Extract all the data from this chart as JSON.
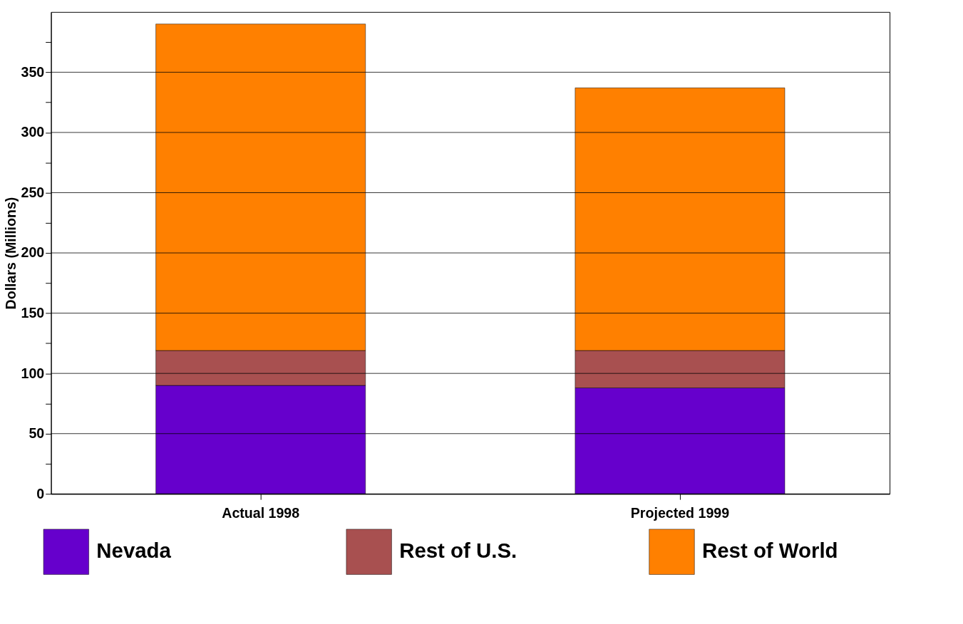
{
  "chart_data": {
    "type": "bar",
    "stacked": true,
    "ylabel": "Dollars (Millions)",
    "categories": [
      "Actual 1998",
      "Projected 1999"
    ],
    "series": [
      {
        "name": "Nevada",
        "color": "#6600cc",
        "values": [
          90,
          88
        ]
      },
      {
        "name": "Rest of U.S.",
        "color": "#a85050",
        "values": [
          29,
          31
        ]
      },
      {
        "name": "Rest of World",
        "color": "#ff8000",
        "values": [
          271,
          218
        ]
      }
    ],
    "ylim": [
      0,
      400
    ],
    "yticks": [
      0,
      {
        "value": 25,
        "label": null
      },
      50,
      {
        "value": 75,
        "label": null
      },
      100,
      {
        "value": 125,
        "label": null
      },
      150,
      {
        "value": 175,
        "label": null
      },
      200,
      {
        "value": 225,
        "label": null
      },
      250,
      {
        "value": 275,
        "label": null
      },
      300,
      {
        "value": 325,
        "label": null
      },
      350,
      {
        "value": 375,
        "label": null
      }
    ],
    "grid": "y",
    "legend": "bottom"
  }
}
